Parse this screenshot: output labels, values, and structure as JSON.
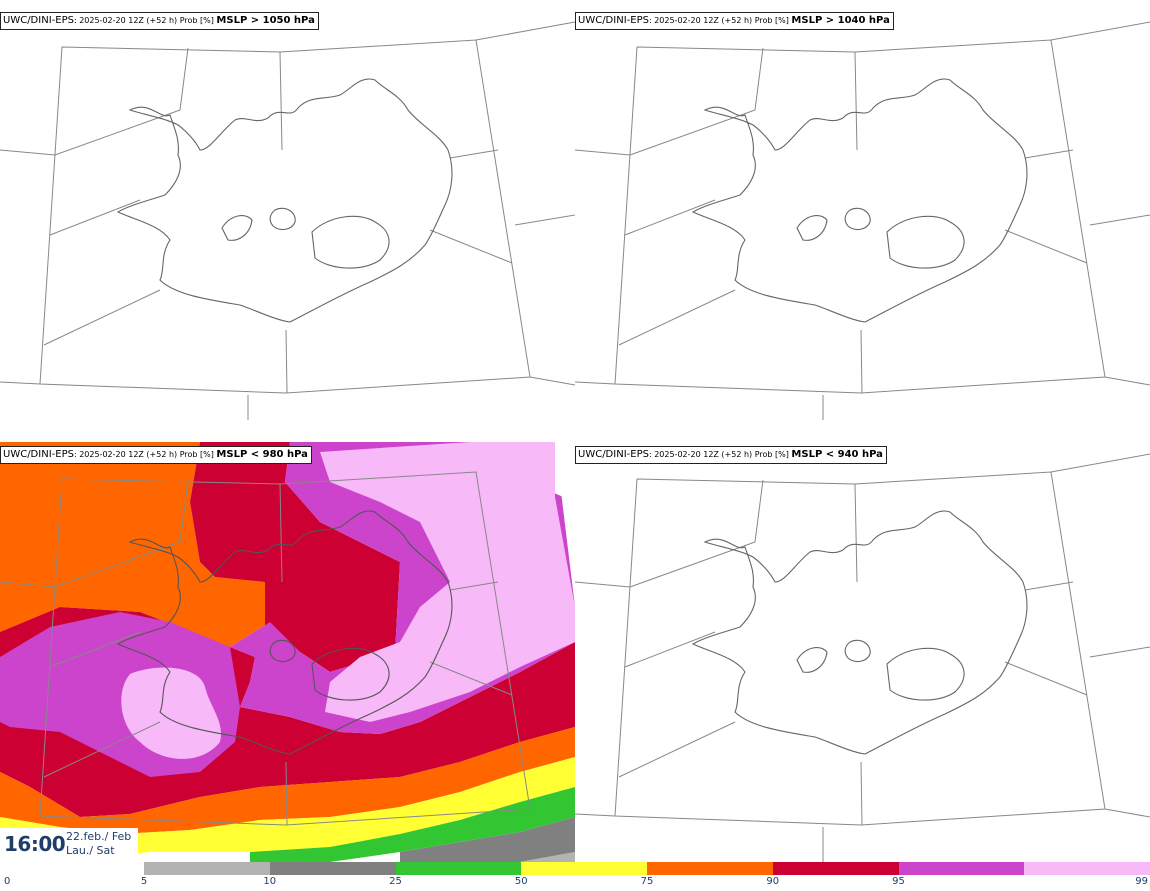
{
  "panels": [
    {
      "model": "UWC/DINI-EPS",
      "meta": ": 2025-02-20 12Z (+52 h) Prob [%] ",
      "field": "MSLP > 1050 hPa"
    },
    {
      "model": "UWC/DINI-EPS",
      "meta": ": 2025-02-20 12Z (+52 h) Prob [%] ",
      "field": "MSLP > 1040 hPa"
    },
    {
      "model": "UWC/DINI-EPS",
      "meta": ": 2025-02-20 12Z (+52 h) Prob [%] ",
      "field": "MSLP < 980 hPa"
    },
    {
      "model": "UWC/DINI-EPS",
      "meta": ": 2025-02-20 12Z (+52 h) Prob [%] ",
      "field": "MSLP < 940 hPa"
    }
  ],
  "valid_time": {
    "hour": "16:00",
    "date_line1": "22.feb./ Feb",
    "date_line2": "Lau./ Sat"
  },
  "colorbar": {
    "ticks": [
      "0",
      "5",
      "10",
      "25",
      "50",
      "75",
      "90",
      "95",
      "99"
    ],
    "colors": [
      "#b3b3b3",
      "#808080",
      "#33c633",
      "#ffff33",
      "#ff6600",
      "#cc0033",
      "#cc44cc",
      "#f7b9f7"
    ]
  }
}
